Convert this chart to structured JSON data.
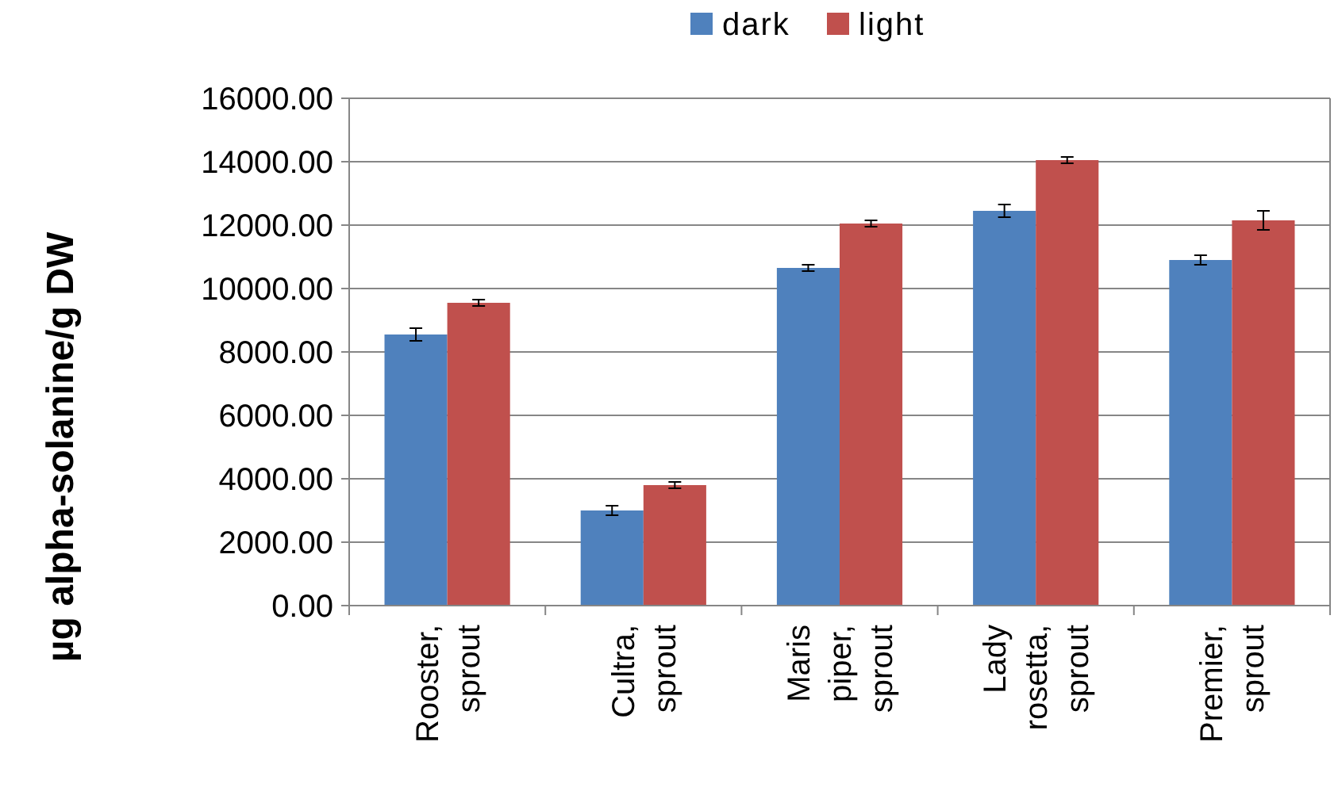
{
  "chart_data": {
    "type": "bar",
    "ylabel": "µg alpha-solanine/g DW",
    "categories": [
      "Rooster, sprout",
      "Cultra, sprout",
      "Maris piper, sprout",
      "Lady rosetta, sprout",
      "Premier, sprout"
    ],
    "series": [
      {
        "name": "dark",
        "color": "#4f81bd",
        "values": [
          8550,
          3000,
          10650,
          12450,
          10900
        ],
        "errors": [
          200,
          150,
          100,
          200,
          150
        ]
      },
      {
        "name": "light",
        "color": "#c0504d",
        "values": [
          9550,
          3800,
          12050,
          14050,
          12150
        ],
        "errors": [
          100,
          100,
          100,
          100,
          300
        ]
      }
    ],
    "ylim": [
      0,
      16000
    ],
    "yticks": [
      {
        "value": 0,
        "label": "0.00"
      },
      {
        "value": 2000,
        "label": "2000.00"
      },
      {
        "value": 4000,
        "label": "4000.00"
      },
      {
        "value": 6000,
        "label": "6000.00"
      },
      {
        "value": 8000,
        "label": "8000.00"
      },
      {
        "value": 10000,
        "label": "10000.00"
      },
      {
        "value": 12000,
        "label": "12000.00"
      },
      {
        "value": 14000,
        "label": "14000.00"
      },
      {
        "value": 16000,
        "label": "16000.00"
      }
    ],
    "grid": "y",
    "legend": "top"
  }
}
